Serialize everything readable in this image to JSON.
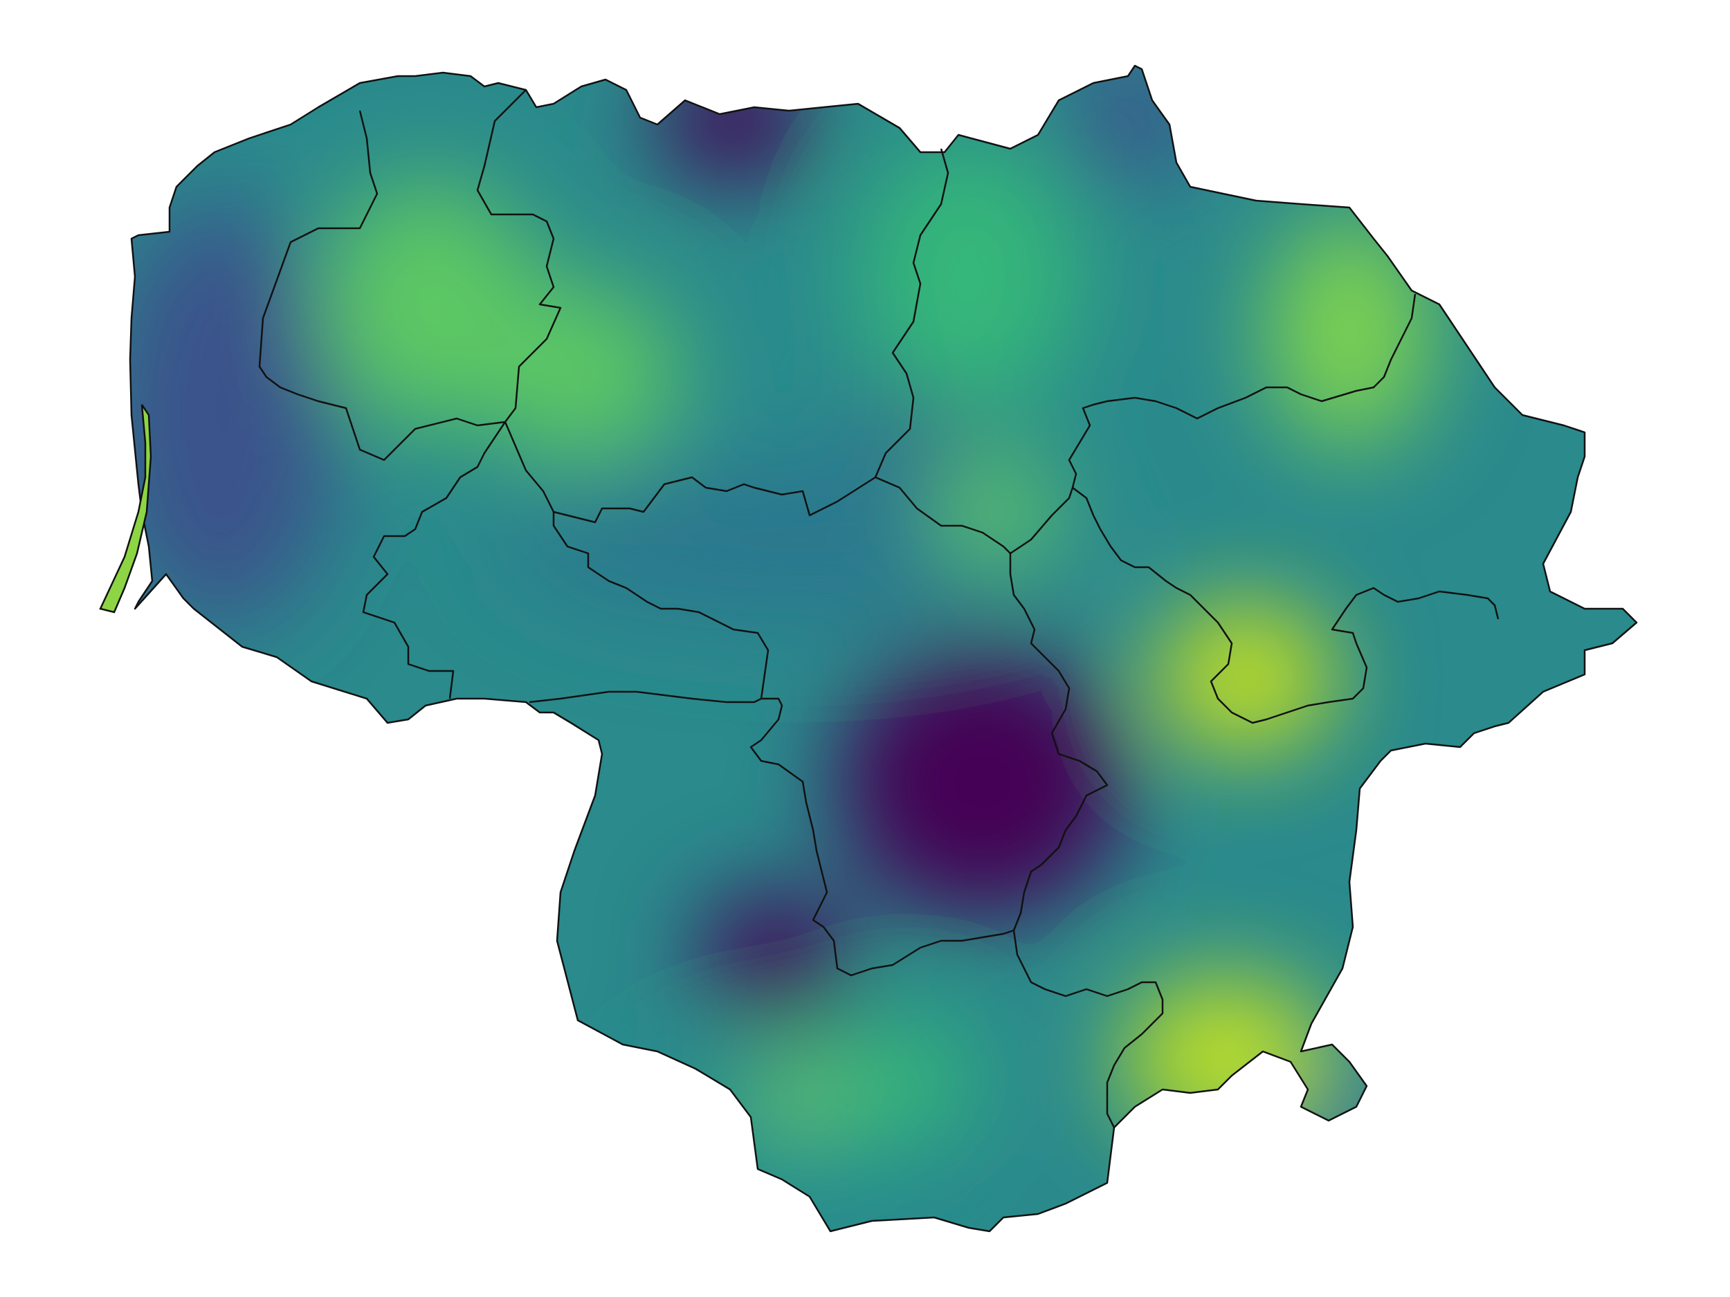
{
  "map": {
    "colormap": "viridis",
    "palette": [
      "#440154",
      "#3b528b",
      "#21908c",
      "#5dc863",
      "#fde725"
    ],
    "background": "#ffffff",
    "border_color": "#111111",
    "regions": [
      {
        "id": "region-1"
      },
      {
        "id": "region-2"
      },
      {
        "id": "region-3"
      },
      {
        "id": "region-4"
      },
      {
        "id": "region-5"
      },
      {
        "id": "region-6"
      },
      {
        "id": "region-7"
      },
      {
        "id": "region-8"
      },
      {
        "id": "region-9"
      },
      {
        "id": "region-10"
      }
    ],
    "intensity_field": [
      {
        "label": "north-center-low",
        "level": 0.0
      },
      {
        "label": "center-low",
        "level": 0.0
      },
      {
        "label": "northeast-high",
        "level": 0.8
      },
      {
        "label": "east-high",
        "level": 0.9
      },
      {
        "label": "southeast-high",
        "level": 0.95
      },
      {
        "label": "south-high",
        "level": 0.7
      },
      {
        "label": "west-low",
        "level": 0.2
      },
      {
        "label": "spit-high",
        "level": 0.85
      }
    ]
  }
}
